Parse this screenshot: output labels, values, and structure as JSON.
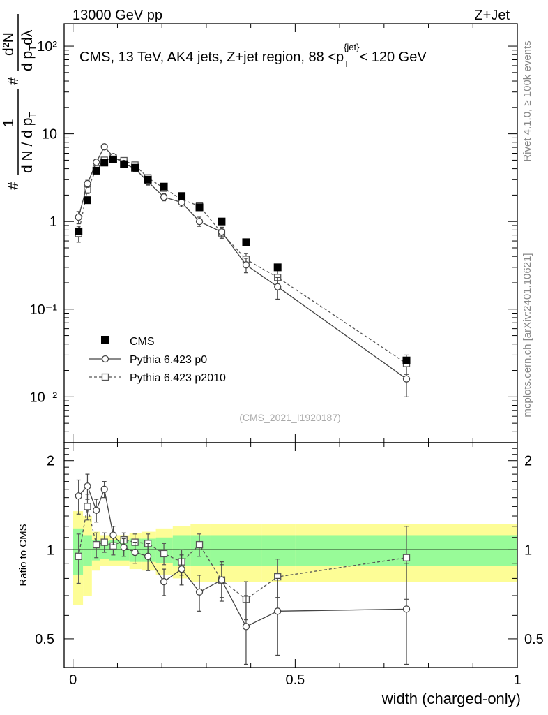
{
  "header": {
    "left": "13000 GeV pp",
    "right": "Z+Jet"
  },
  "side": {
    "top": "Rivet 4.1.0, ≥ 100k events",
    "bottom": "mcplots.cern.ch [arXiv:2401.10621]"
  },
  "chart_data": {
    "type": "scatter",
    "title": "CMS, 13 TeV, AK4 jets, Z+jet region, 88 <p_T^{jet}< 120 GeV",
    "title_parts": {
      "pre": "CMS, 13 TeV, AK4 jets, Z+jet region, 88 <p",
      "sub": "T",
      "sup": "{jet}",
      "post": "< 120 GeV"
    },
    "watermark": "(CMS_2021_I1920187)",
    "xlabel": "width (charged-only)",
    "ylabel": "# 1/(dN/dp_T) # d²N/(dp_T dλ)",
    "ylabel_parts": {
      "hash": "#",
      "one": "1",
      "dN": "d N / d p",
      "T": "T",
      "d2N": "d²N",
      "dpt": "d p",
      "dl": "dλ"
    },
    "xlim": [
      -0.02,
      1.0
    ],
    "ylim_main": [
      0.003,
      180
    ],
    "ylim_ratio": [
      0.4,
      2.3
    ],
    "yscale": "log",
    "x_ticks": [
      "0",
      "0.5",
      "1"
    ],
    "y_ticks_main": [
      "10⁻²",
      "10⁻¹",
      "1",
      "10",
      "10²"
    ],
    "y_ticks_ratio": [
      "0.5",
      "1",
      "2"
    ],
    "ratio_ylabel": "Ratio to CMS",
    "legend_position": "lower-left",
    "x": [
      0.0125,
      0.0325,
      0.0525,
      0.0705,
      0.0905,
      0.1145,
      0.1395,
      0.1685,
      0.2045,
      0.2445,
      0.2845,
      0.3345,
      0.3895,
      0.4605,
      0.7505
    ],
    "series": [
      {
        "name": "CMS",
        "marker": "filled-square",
        "values": [
          0.77,
          1.75,
          3.8,
          4.7,
          5.1,
          4.5,
          4.1,
          3.0,
          2.5,
          1.95,
          1.45,
          1.0,
          0.58,
          0.3,
          0.026
        ],
        "band_inner": [
          0.18,
          0.12,
          0.08,
          0.07,
          0.08,
          0.08,
          0.09,
          0.09,
          0.1,
          0.12,
          0.12,
          0.12,
          0.12,
          0.12,
          0.12
        ],
        "band_outer": [
          0.35,
          0.3,
          0.15,
          0.12,
          0.12,
          0.12,
          0.14,
          0.15,
          0.18,
          0.2,
          0.22,
          0.22,
          0.22,
          0.22,
          0.22
        ]
      },
      {
        "name": "Pythia 6.423 p0",
        "marker": "open-circle",
        "line": "solid",
        "values": [
          1.12,
          2.7,
          4.75,
          7.1,
          5.5,
          4.6,
          4.0,
          2.85,
          1.9,
          1.65,
          1.0,
          0.76,
          0.32,
          0.18,
          0.016
        ],
        "errors": [
          0.18,
          0.25,
          0.3,
          0.35,
          0.3,
          0.25,
          0.22,
          0.25,
          0.18,
          0.18,
          0.12,
          0.1,
          0.06,
          0.05,
          0.006
        ],
        "ratio": [
          1.52,
          1.64,
          1.36,
          1.6,
          1.12,
          1.02,
          0.98,
          0.95,
          0.78,
          0.86,
          0.72,
          0.79,
          0.55,
          0.62,
          0.63
        ],
        "ratio_errors": [
          0.2,
          0.16,
          0.12,
          0.1,
          0.08,
          0.07,
          0.08,
          0.1,
          0.08,
          0.1,
          0.1,
          0.12,
          0.15,
          0.18,
          0.27
        ]
      },
      {
        "name": "Pythia 6.423 p2010",
        "marker": "open-square",
        "line": "dashed",
        "values": [
          0.73,
          2.3,
          4.0,
          5.0,
          5.3,
          4.95,
          4.4,
          3.15,
          2.4,
          1.78,
          1.5,
          0.74,
          0.37,
          0.23,
          0.024
        ],
        "errors": [
          0.15,
          0.22,
          0.28,
          0.3,
          0.3,
          0.26,
          0.24,
          0.25,
          0.18,
          0.18,
          0.15,
          0.1,
          0.06,
          0.05,
          0.006
        ],
        "ratio": [
          0.95,
          1.4,
          1.04,
          1.06,
          1.03,
          1.08,
          1.06,
          1.05,
          0.97,
          0.91,
          1.04,
          0.79,
          0.68,
          0.81,
          0.94
        ],
        "ratio_errors": [
          0.18,
          0.14,
          0.1,
          0.08,
          0.07,
          0.06,
          0.07,
          0.08,
          0.08,
          0.09,
          0.09,
          0.1,
          0.1,
          0.12,
          0.26
        ]
      }
    ]
  }
}
